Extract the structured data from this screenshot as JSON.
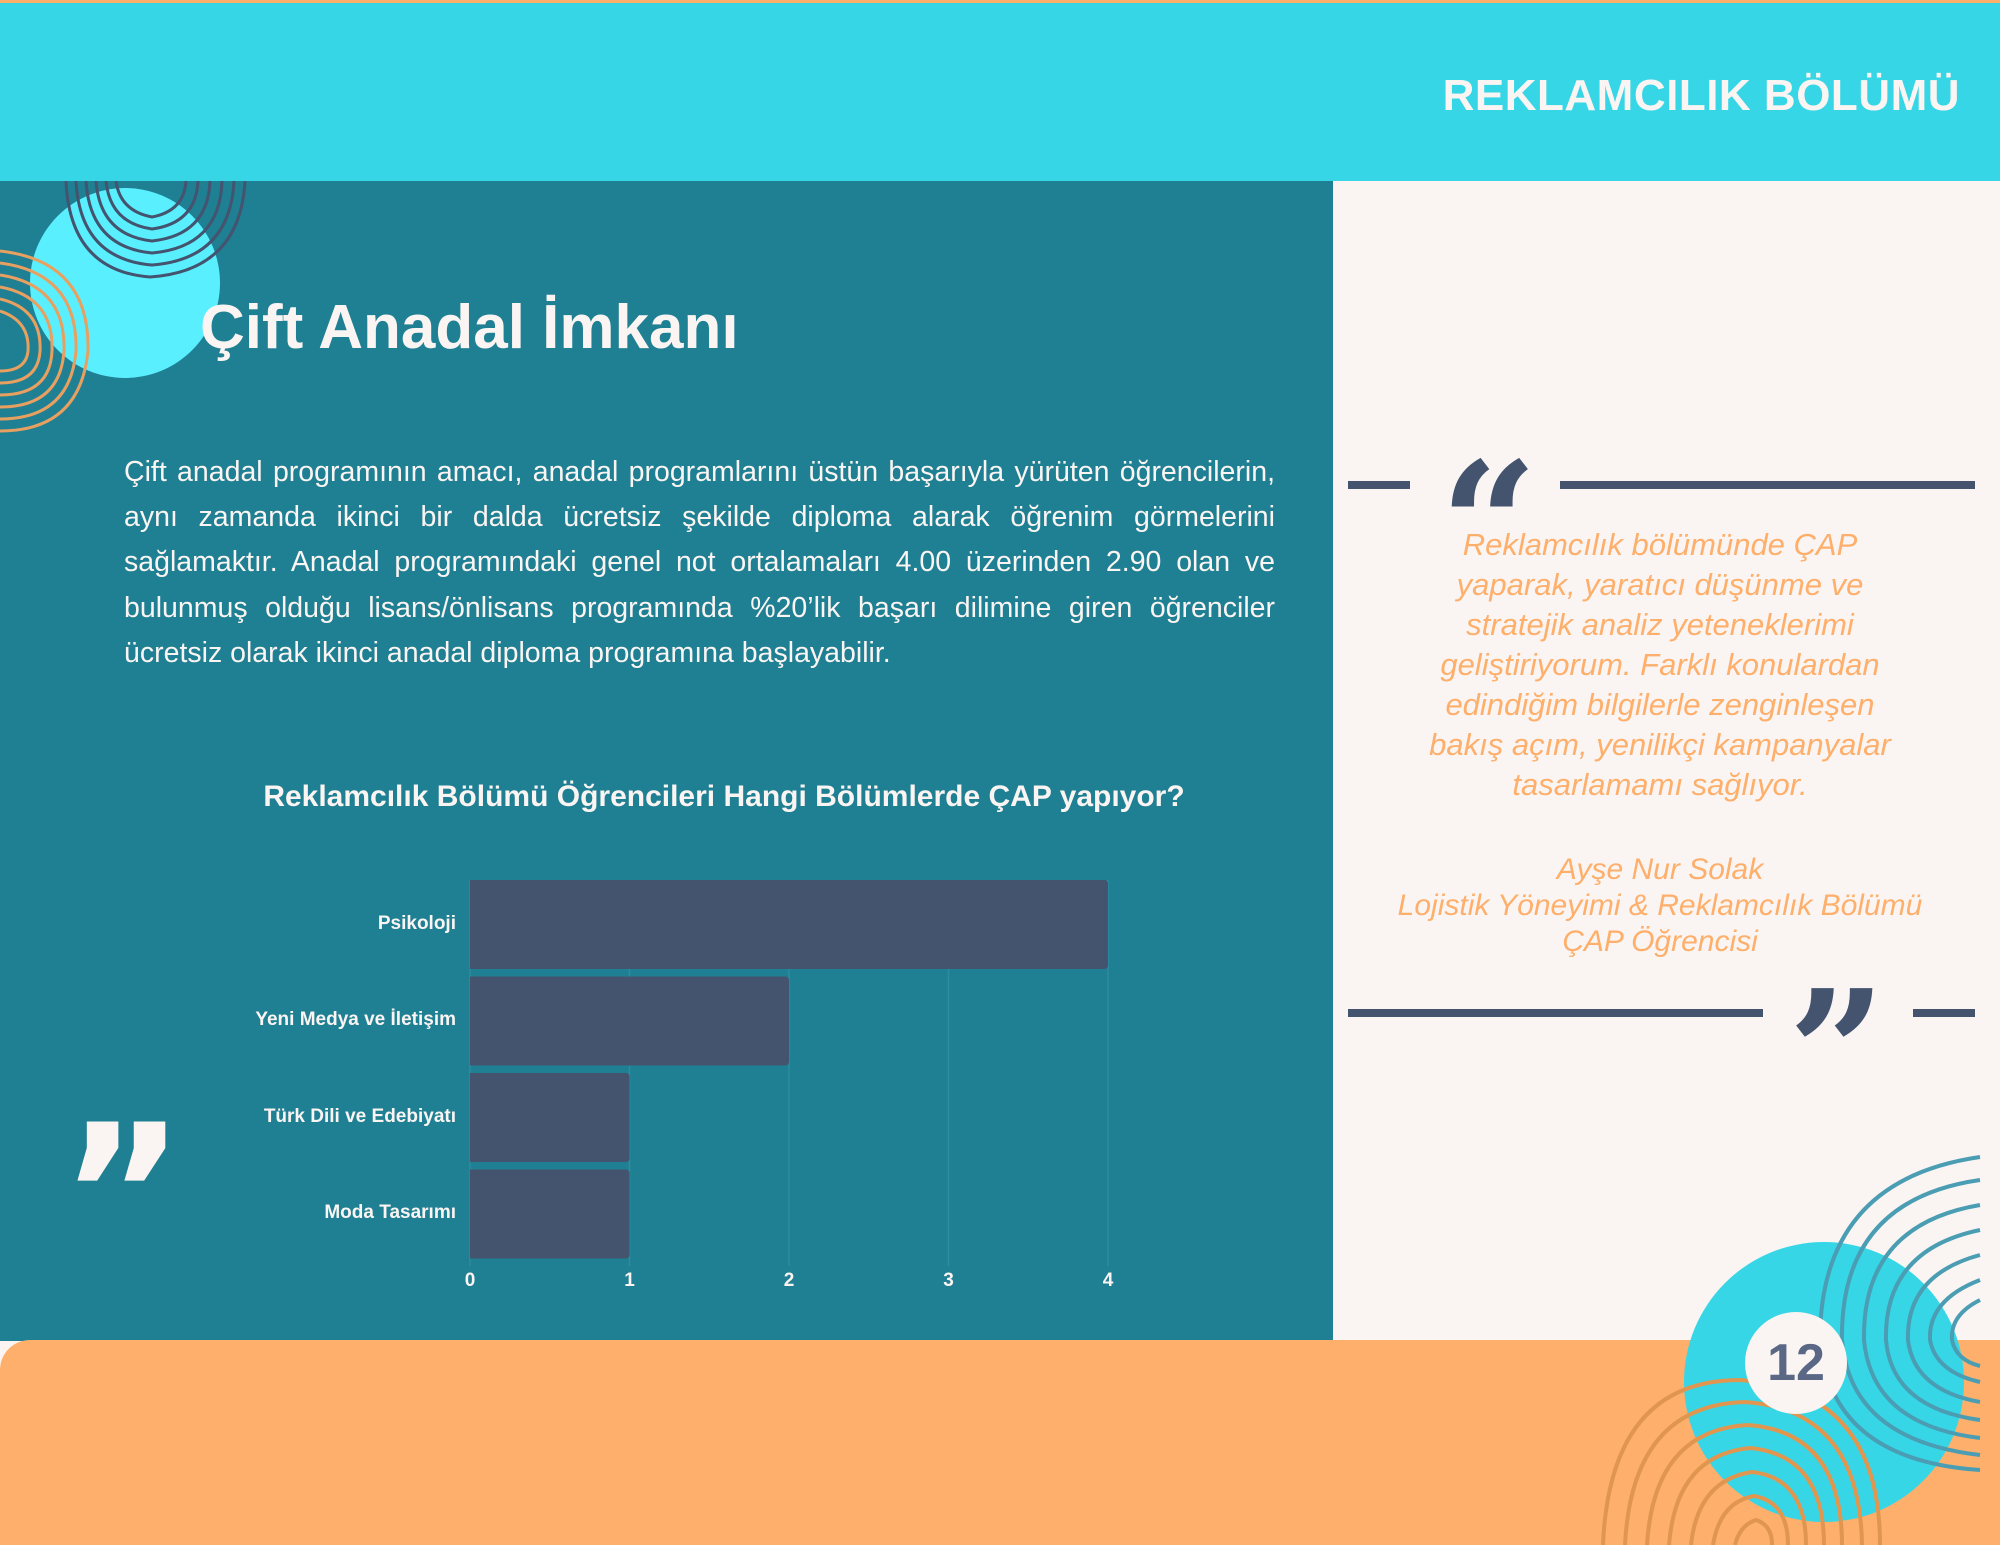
{
  "header": {
    "section_title": "REKLAMCILIK BÖLÜMÜ"
  },
  "main": {
    "title": "Çift Anadal İmkanı",
    "paragraph": "Çift anadal programının amacı, anadal programlarını üstün başarıyla yürüten öğrencilerin, aynı zamanda ikinci bir dalda ücretsiz şekilde diploma alarak öğrenim görmelerini sağlamaktır. Anadal programındaki genel not ortalamaları 4.00 üzerinden 2.90 olan ve bulunmuş olduğu lisans/önlisans programında %20’lik başarı dilimine giren öğrenciler ücretsiz olarak ikinci anadal diploma programına başlayabilir."
  },
  "chart_data": {
    "type": "bar",
    "orientation": "horizontal",
    "title": "Reklamcılık Bölümü Öğrencileri Hangi Bölümlerde ÇAP yapıyor?",
    "categories": [
      "Psikoloji",
      "Yeni Medya ve İletişim",
      "Türk Dili ve Edebiyatı",
      "Moda Tasarımı"
    ],
    "values": [
      4,
      2,
      1,
      1
    ],
    "xlim": [
      0,
      4
    ],
    "xticks": [
      "0",
      "1",
      "2",
      "3",
      "4"
    ],
    "grid": true,
    "bar_color": "#44546F"
  },
  "testimonial": {
    "quote_lines": [
      "Reklamcılık bölümünde ÇAP",
      "yaparak, yaratıcı düşünme ve",
      "stratejik analiz yeteneklerimi",
      "geliştiriyorum. Farklı konulardan",
      "edindiğim bilgilerle zenginleşen",
      "bakış açım, yenilikçi kampanyalar",
      "tasarlamamı sağlıyor."
    ],
    "author_name": "Ayşe Nur Solak",
    "author_role_line1": "Lojistik Yöneyimi & Reklamcılık Bölümü",
    "author_role_line2": "ÇAP Öğrencisi",
    "open_quote": "“",
    "close_quote": "”"
  },
  "decor": {
    "left_quote_mark": "”"
  },
  "footer": {
    "page_number": "12"
  },
  "colors": {
    "cyan": "#37D6E6",
    "teal": "#1F7F93",
    "orange": "#FDAF6B",
    "navy": "#44546F",
    "cream": "#FAF5F2"
  }
}
